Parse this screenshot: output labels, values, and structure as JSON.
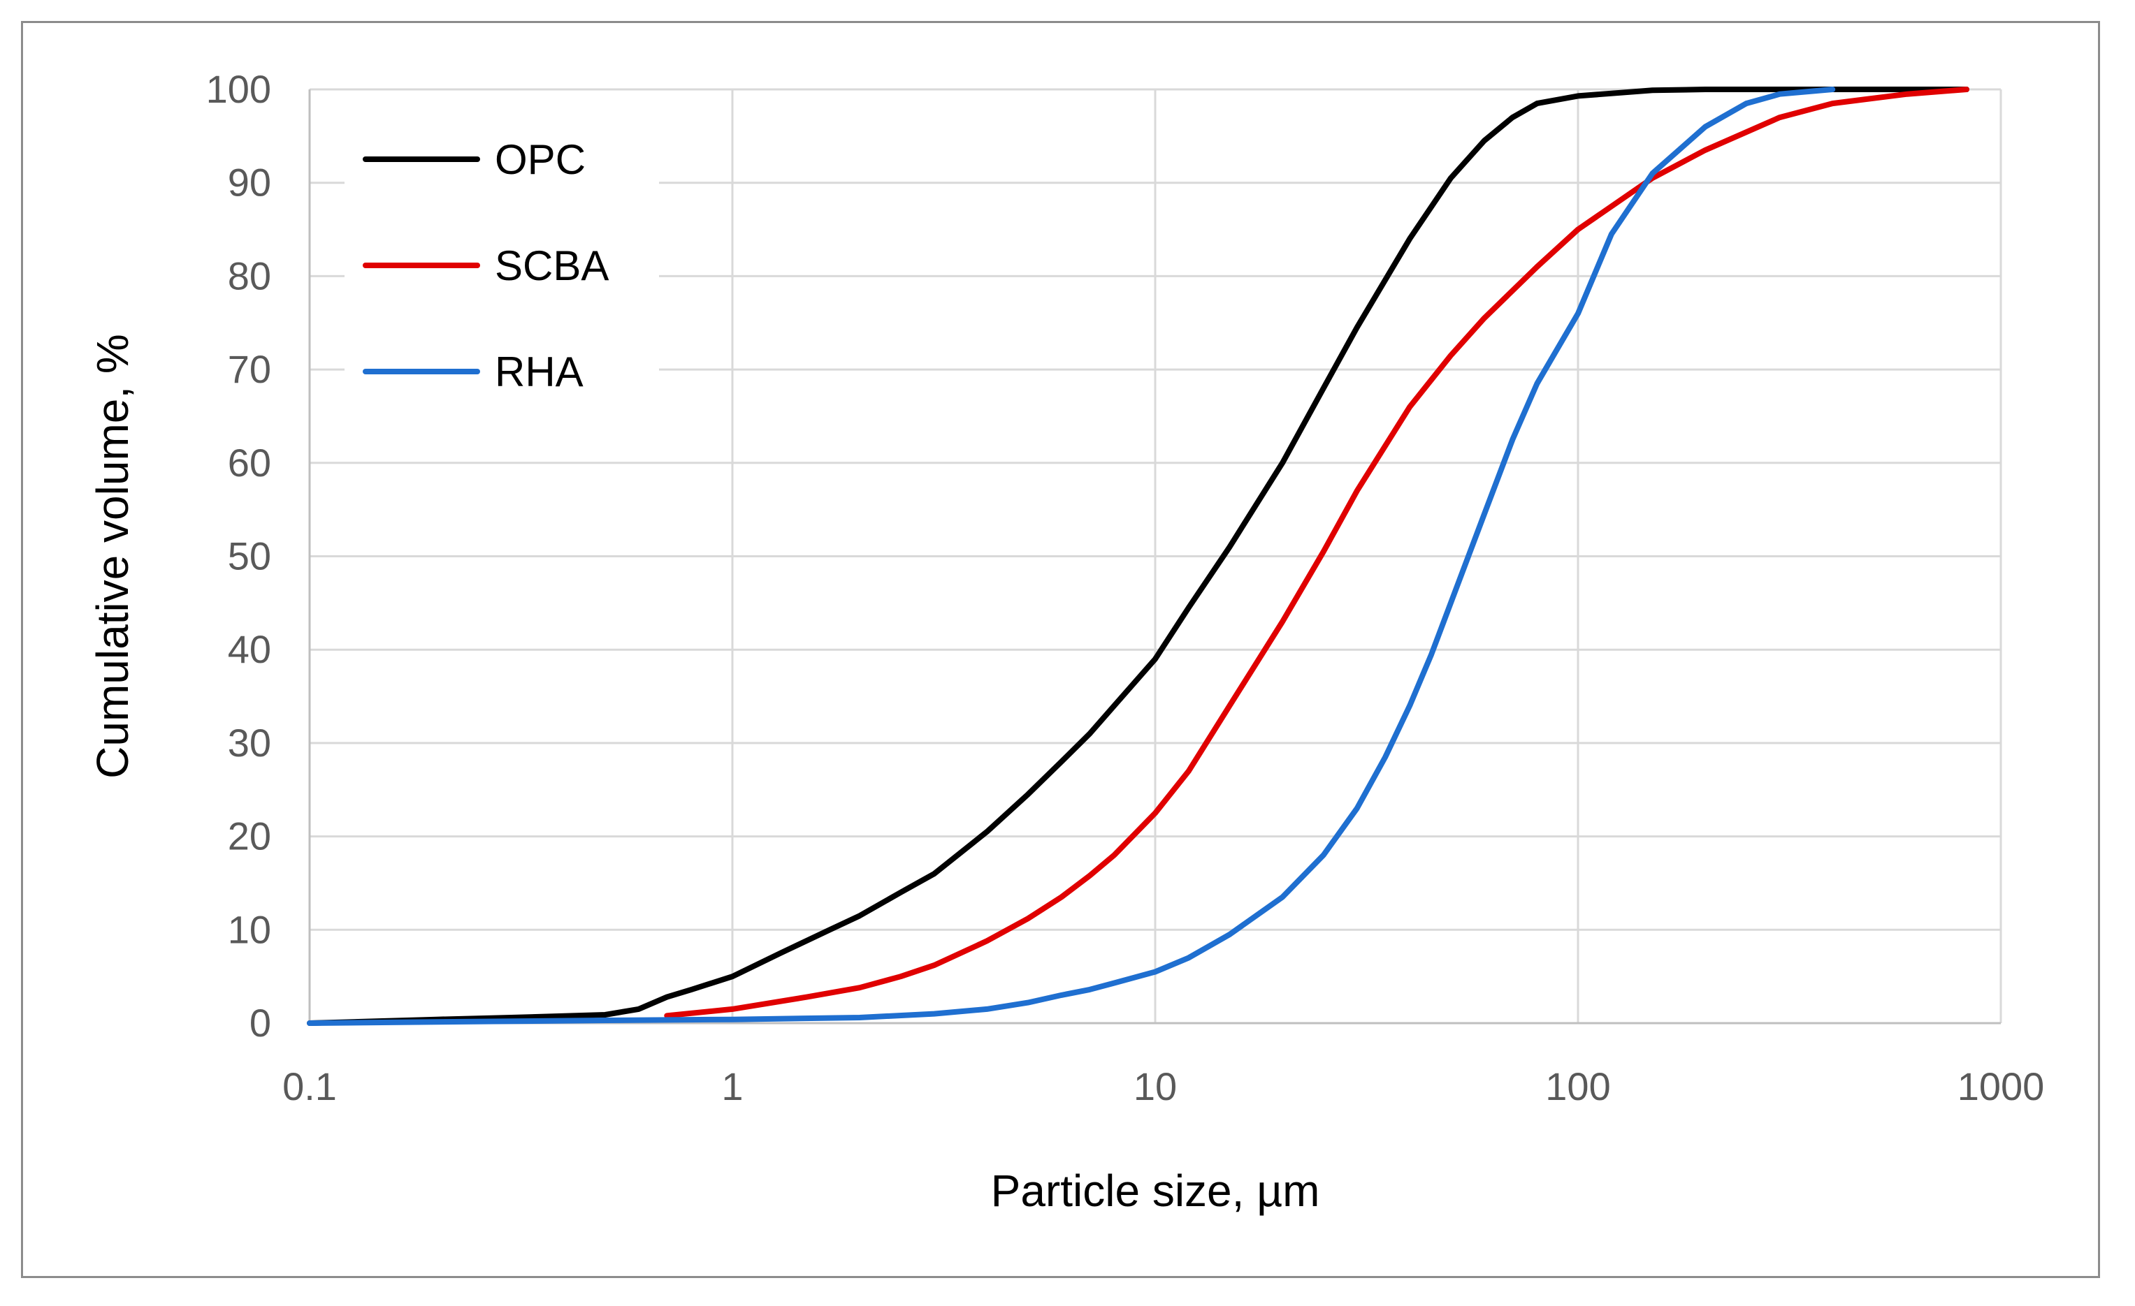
{
  "chart_data": {
    "type": "line",
    "title": "",
    "xlabel": "Particle size, µm",
    "ylabel": "Cumulative volume, %",
    "xscale": "log",
    "xlim": [
      0.1,
      1000
    ],
    "ylim": [
      0,
      100
    ],
    "x_ticks": [
      "0.1",
      "1",
      "10",
      "100",
      "1000"
    ],
    "y_ticks": [
      "0",
      "10",
      "20",
      "30",
      "40",
      "50",
      "60",
      "70",
      "80",
      "90",
      "100"
    ],
    "grid": true,
    "legend_position": "top-left",
    "series": [
      {
        "name": "OPC",
        "color": "#000000",
        "points": [
          [
            0.1,
            0
          ],
          [
            0.2,
            0.4
          ],
          [
            0.3,
            0.6
          ],
          [
            0.5,
            0.9
          ],
          [
            0.6,
            1.5
          ],
          [
            0.7,
            2.8
          ],
          [
            0.8,
            3.6
          ],
          [
            1.0,
            5.0
          ],
          [
            1.3,
            7.5
          ],
          [
            1.7,
            10.0
          ],
          [
            2.0,
            11.5
          ],
          [
            2.5,
            14.0
          ],
          [
            3.0,
            16.0
          ],
          [
            4.0,
            20.5
          ],
          [
            5.0,
            24.5
          ],
          [
            6.0,
            28.0
          ],
          [
            7.0,
            31.0
          ],
          [
            8.0,
            34.0
          ],
          [
            10.0,
            39.0
          ],
          [
            12.0,
            44.5
          ],
          [
            15.0,
            51.0
          ],
          [
            20.0,
            60.0
          ],
          [
            25.0,
            68.0
          ],
          [
            30.0,
            74.5
          ],
          [
            40.0,
            84.0
          ],
          [
            50.0,
            90.5
          ],
          [
            60.0,
            94.5
          ],
          [
            70.0,
            97.0
          ],
          [
            80.0,
            98.5
          ],
          [
            100.0,
            99.3
          ],
          [
            150.0,
            99.9
          ],
          [
            200.0,
            100
          ],
          [
            830.0,
            100
          ]
        ]
      },
      {
        "name": "SCBA",
        "color": "#e00000",
        "points": [
          [
            0.7,
            0.8
          ],
          [
            1.0,
            1.5
          ],
          [
            1.5,
            2.8
          ],
          [
            2.0,
            3.8
          ],
          [
            2.5,
            5.0
          ],
          [
            3.0,
            6.2
          ],
          [
            4.0,
            8.8
          ],
          [
            5.0,
            11.2
          ],
          [
            6.0,
            13.5
          ],
          [
            7.0,
            15.8
          ],
          [
            8.0,
            18.0
          ],
          [
            10.0,
            22.5
          ],
          [
            12.0,
            27.0
          ],
          [
            15.0,
            34.0
          ],
          [
            20.0,
            43.0
          ],
          [
            25.0,
            50.5
          ],
          [
            30.0,
            57.0
          ],
          [
            40.0,
            66.0
          ],
          [
            50.0,
            71.5
          ],
          [
            60.0,
            75.5
          ],
          [
            80.0,
            81.0
          ],
          [
            100.0,
            85.0
          ],
          [
            150.0,
            90.5
          ],
          [
            200.0,
            93.5
          ],
          [
            300.0,
            97.0
          ],
          [
            400.0,
            98.5
          ],
          [
            600.0,
            99.5
          ],
          [
            830.0,
            100
          ]
        ]
      },
      {
        "name": "RHA",
        "color": "#1f6fd0",
        "points": [
          [
            0.1,
            0
          ],
          [
            0.5,
            0.3
          ],
          [
            1.0,
            0.4
          ],
          [
            2.0,
            0.6
          ],
          [
            3.0,
            1.0
          ],
          [
            4.0,
            1.5
          ],
          [
            5.0,
            2.2
          ],
          [
            6.0,
            3.0
          ],
          [
            7.0,
            3.6
          ],
          [
            8.0,
            4.3
          ],
          [
            10.0,
            5.5
          ],
          [
            12.0,
            7.0
          ],
          [
            15.0,
            9.5
          ],
          [
            20.0,
            13.5
          ],
          [
            25.0,
            18.0
          ],
          [
            30.0,
            23.0
          ],
          [
            35.0,
            28.5
          ],
          [
            40.0,
            34.0
          ],
          [
            45.0,
            39.5
          ],
          [
            50.0,
            45.0
          ],
          [
            60.0,
            54.5
          ],
          [
            70.0,
            62.5
          ],
          [
            80.0,
            68.5
          ],
          [
            100.0,
            76.0
          ],
          [
            120.0,
            84.5
          ],
          [
            150.0,
            91.0
          ],
          [
            200.0,
            96.0
          ],
          [
            250.0,
            98.5
          ],
          [
            300.0,
            99.5
          ],
          [
            400.0,
            100
          ]
        ]
      }
    ]
  }
}
